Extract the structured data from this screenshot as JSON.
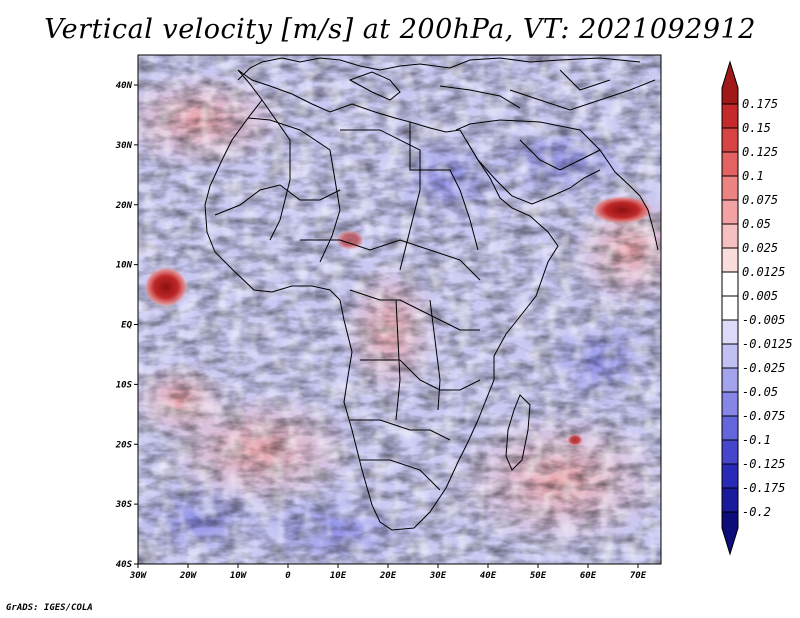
{
  "title": "Vertical velocity [m/s] at 200hPa, VT: 2021092912",
  "footer": "GrADS: IGES/COLA",
  "map": {
    "lon_range": [
      -30,
      75
    ],
    "lat_range": [
      -40,
      45
    ],
    "x_ticks": [
      "30W",
      "20W",
      "10W",
      "0",
      "10E",
      "20E",
      "30E",
      "40E",
      "50E",
      "60E",
      "70E"
    ],
    "y_ticks": [
      "40N",
      "30N",
      "20N",
      "10N",
      "EQ",
      "10S",
      "20S",
      "30S",
      "40S"
    ]
  },
  "colorbar": {
    "levels": [
      "0.175",
      "0.15",
      "0.125",
      "0.1",
      "0.075",
      "0.05",
      "0.025",
      "0.0125",
      "0.005",
      "-0.005",
      "-0.0125",
      "-0.025",
      "-0.05",
      "-0.075",
      "-0.1",
      "-0.125",
      "-0.175",
      "-0.2"
    ],
    "colors": [
      "#a01818",
      "#c42a2a",
      "#d84444",
      "#e46262",
      "#ec8484",
      "#f2a2a2",
      "#f7c0c0",
      "#fbdcdc",
      "#ffffff",
      "#ffffff",
      "#dcdcfa",
      "#c0c0f4",
      "#a4a4ee",
      "#8686e6",
      "#6666dc",
      "#4646cc",
      "#2a2ab8",
      "#1a1a9c",
      "#0c0c7a"
    ]
  },
  "features": {
    "high_upward_color": "#b02020",
    "ocean_base_color": "#c8c8f4",
    "land_outline_color": "#000000"
  }
}
